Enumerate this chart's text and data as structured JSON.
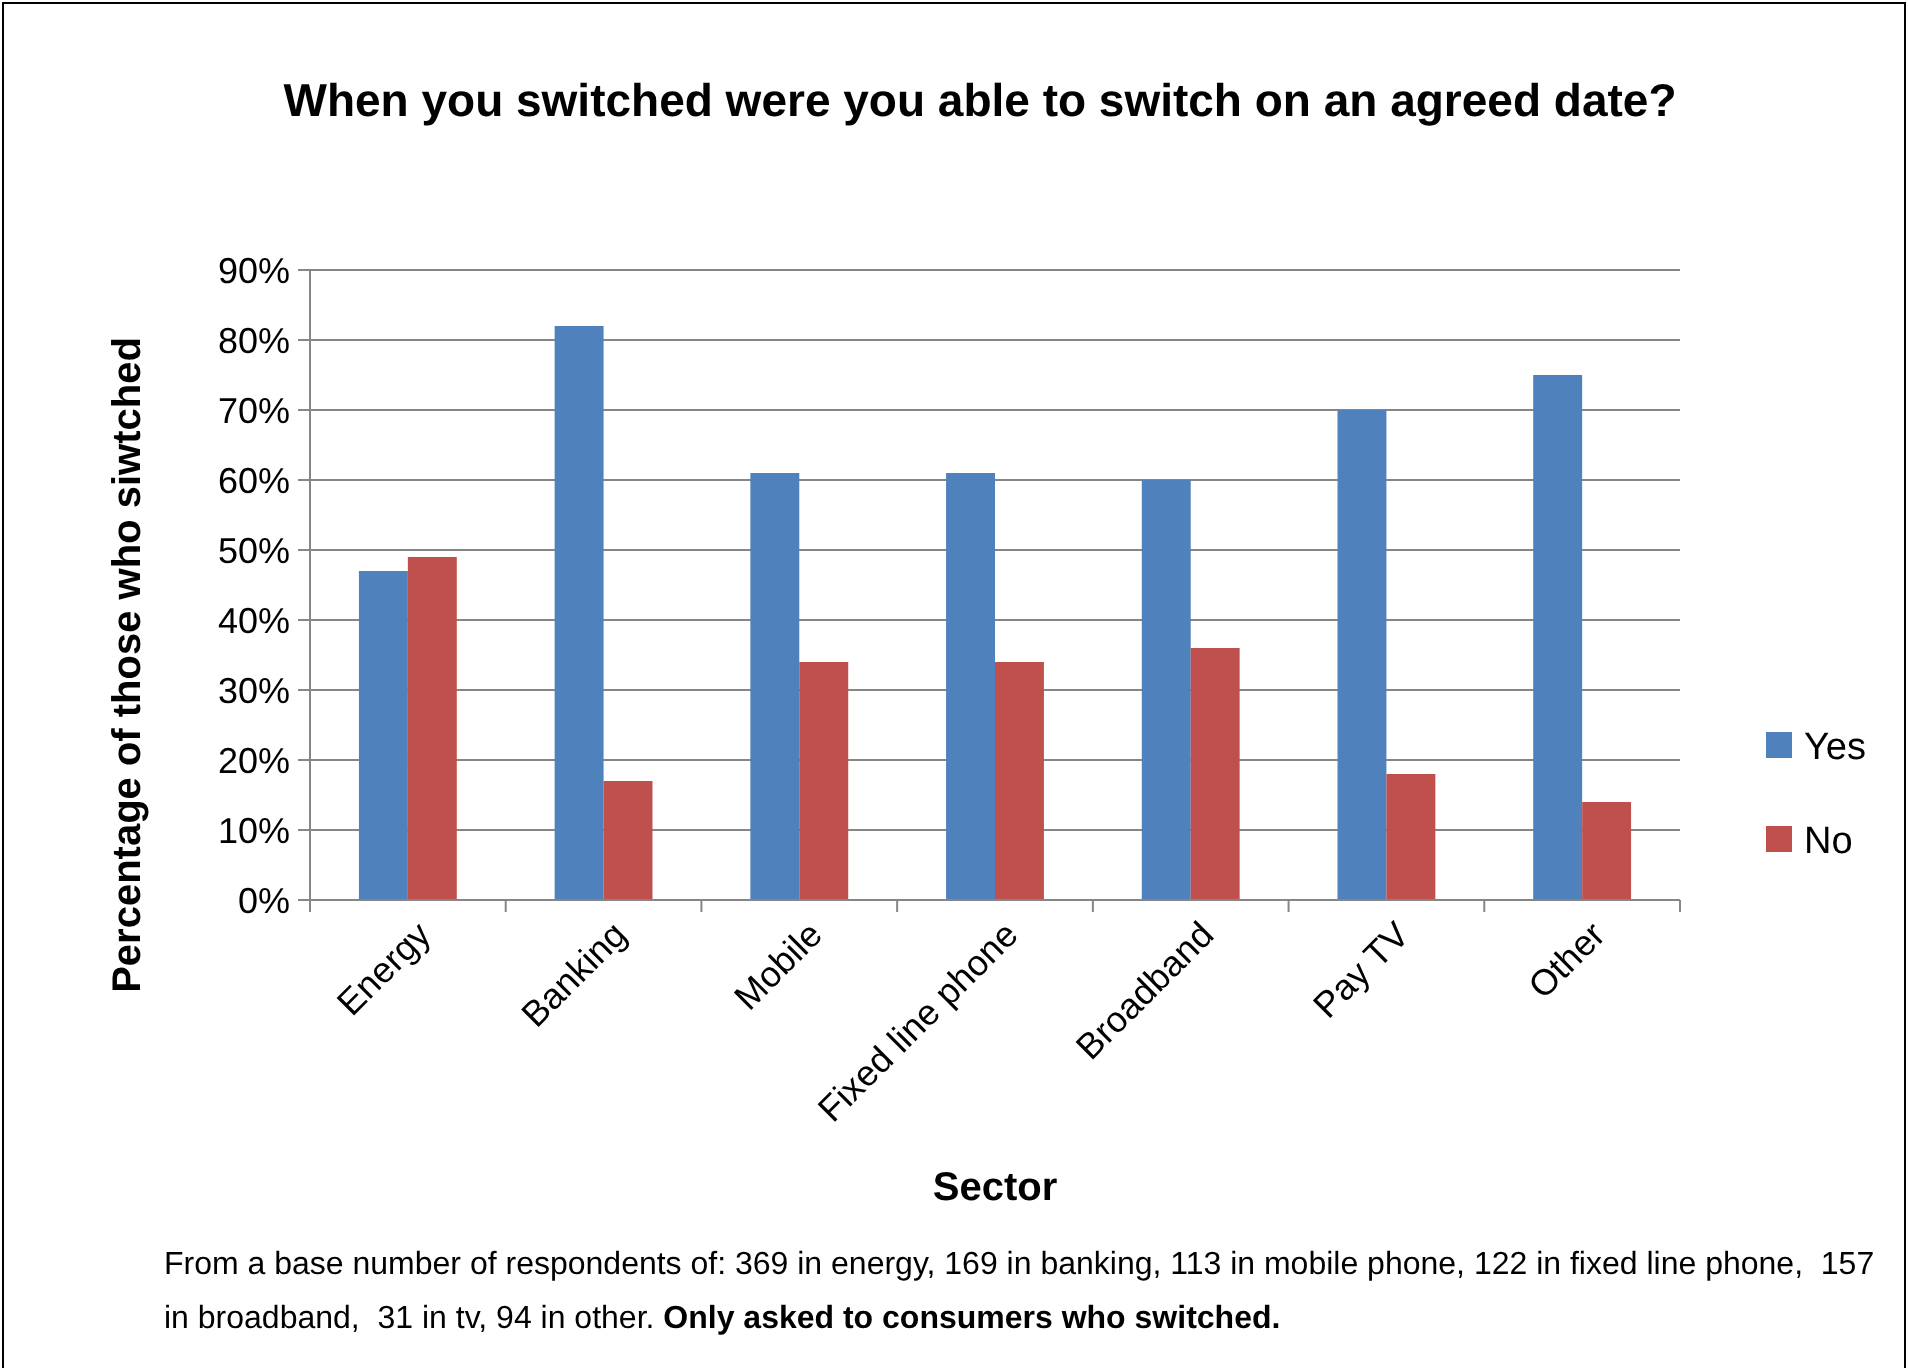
{
  "chart_data": {
    "type": "bar",
    "title": "When you switched were you able to switch on an agreed date?",
    "xlabel": "Sector",
    "ylabel": "Percentage of those who siwtched",
    "categories": [
      "Energy",
      "Banking",
      "Mobile",
      "Fixed line phone",
      "Broadband",
      "Pay TV",
      "Other"
    ],
    "series": [
      {
        "name": "Yes",
        "color": "#4f81bd",
        "values": [
          47,
          82,
          61,
          61,
          60,
          70,
          75
        ]
      },
      {
        "name": "No",
        "color": "#c0504d",
        "values": [
          49,
          17,
          34,
          34,
          36,
          18,
          14
        ]
      }
    ],
    "ylim": [
      0,
      90
    ],
    "yticks": [
      {
        "value": 0,
        "label": "0%"
      },
      {
        "value": 10,
        "label": "10%"
      },
      {
        "value": 20,
        "label": "20%"
      },
      {
        "value": 30,
        "label": "30%"
      },
      {
        "value": 40,
        "label": "40%"
      },
      {
        "value": 50,
        "label": "50%"
      },
      {
        "value": 60,
        "label": "60%"
      },
      {
        "value": 70,
        "label": "70%"
      },
      {
        "value": 80,
        "label": "80%"
      },
      {
        "value": 90,
        "label": "90%"
      }
    ],
    "grid": "y",
    "legend": "right",
    "annotations": [
      "From a base number of respondents of: 369 in energy, 169 in banking, 113 in mobile phone, 122 in fixed line phone,  157 in broadband,  31 in tv, 94 in other.",
      "Only asked to consumers who switched."
    ]
  }
}
